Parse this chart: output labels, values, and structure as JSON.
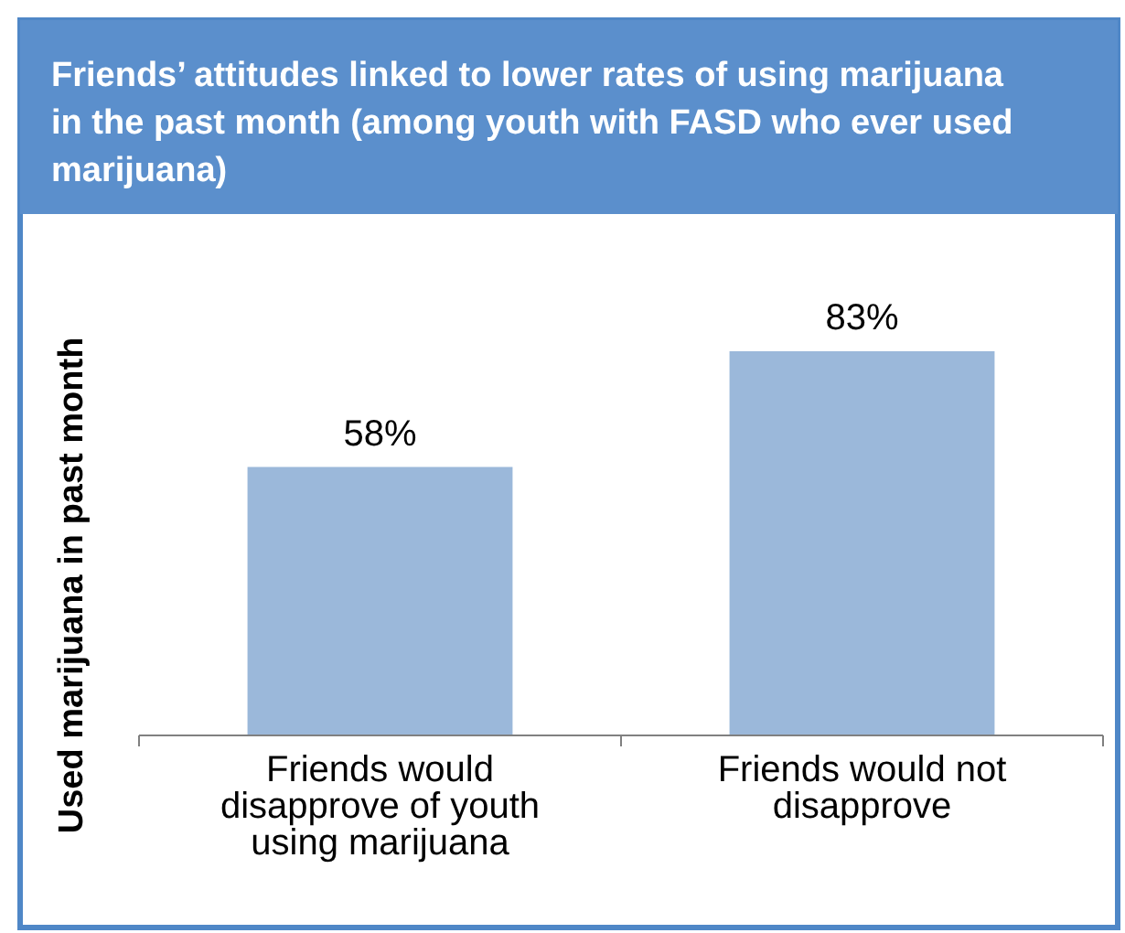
{
  "chart_data": {
    "type": "bar",
    "title": "Friends’ attitudes linked to lower rates of using marijuana in the past month (among youth with FASD who ever used marijuana)",
    "ylabel": "Used marijuana in past month",
    "categories": [
      "Friends would disapprove of youth using marijuana",
      "Friends would not disapprove"
    ],
    "values": [
      58,
      83
    ],
    "value_labels": [
      "58%",
      "83%"
    ],
    "color": "#9bb8da"
  }
}
